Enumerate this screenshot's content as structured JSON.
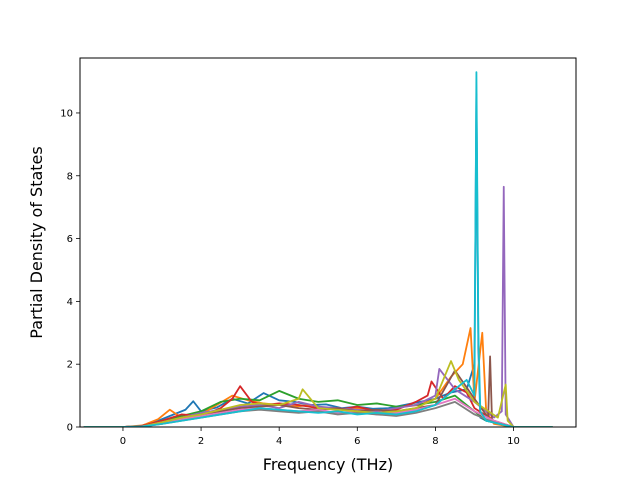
{
  "chart_data": {
    "type": "line",
    "title": "",
    "xlabel": "Frequency (THz)",
    "ylabel": "Partial Density of States",
    "xlim": [
      -1.1,
      11.6
    ],
    "ylim": [
      0,
      11.75
    ],
    "xticks": [
      0,
      2,
      4,
      6,
      8,
      10
    ],
    "yticks": [
      0,
      2,
      4,
      6,
      8,
      10
    ],
    "grid": false,
    "legend": "none",
    "colors": [
      "#1f77b4",
      "#ff7f0e",
      "#2ca02c",
      "#d62728",
      "#9467bd",
      "#8c564b",
      "#e377c2",
      "#7f7f7f",
      "#bcbd22",
      "#17becf"
    ],
    "series": [
      {
        "color": "#1f77b4",
        "x": [
          -1,
          0,
          0.4,
          0.8,
          1.2,
          1.6,
          1.8,
          2.0,
          2.4,
          2.8,
          3.2,
          3.6,
          4.0,
          4.4,
          4.8,
          5.2,
          5.6,
          6.0,
          6.4,
          6.8,
          7.2,
          7.6,
          8.0,
          8.4,
          8.8,
          9.0,
          9.05,
          9.1,
          9.15,
          9.3,
          9.7,
          10,
          11
        ],
        "y": [
          0,
          0,
          0.02,
          0.15,
          0.35,
          0.55,
          0.82,
          0.5,
          0.62,
          0.9,
          0.75,
          1.08,
          0.85,
          0.8,
          0.7,
          0.72,
          0.6,
          0.65,
          0.58,
          0.6,
          0.7,
          0.8,
          0.9,
          1.1,
          1.2,
          2.0,
          10.6,
          2.5,
          0.3,
          0.2,
          0.1,
          0,
          0
        ]
      },
      {
        "color": "#ff7f0e",
        "x": [
          -1,
          0,
          0.5,
          0.9,
          1.2,
          1.5,
          2.0,
          2.4,
          2.8,
          3.2,
          3.6,
          4.0,
          4.4,
          4.8,
          5.2,
          5.6,
          6.0,
          6.4,
          6.8,
          7.2,
          7.6,
          8.0,
          8.4,
          8.7,
          8.9,
          9.0,
          9.2,
          9.3,
          9.5,
          10,
          11
        ],
        "y": [
          0,
          0,
          0.05,
          0.25,
          0.55,
          0.3,
          0.4,
          0.7,
          1.0,
          0.85,
          0.75,
          0.7,
          0.65,
          0.7,
          0.6,
          0.55,
          0.6,
          0.5,
          0.55,
          0.65,
          0.7,
          0.9,
          1.6,
          2.0,
          3.15,
          0.8,
          3.0,
          0.5,
          0.1,
          0,
          0
        ]
      },
      {
        "color": "#2ca02c",
        "x": [
          -1,
          0,
          0.5,
          1.0,
          1.5,
          2.0,
          2.5,
          3.0,
          3.5,
          4.0,
          4.5,
          5.0,
          5.5,
          6.0,
          6.5,
          7.0,
          7.5,
          8.0,
          8.5,
          9.0,
          9.3,
          10,
          11
        ],
        "y": [
          0,
          0,
          0.03,
          0.2,
          0.35,
          0.5,
          0.8,
          0.9,
          0.85,
          1.15,
          0.9,
          0.8,
          0.85,
          0.7,
          0.75,
          0.65,
          0.7,
          0.8,
          1.0,
          0.5,
          0.2,
          0,
          0
        ]
      },
      {
        "color": "#d62728",
        "x": [
          -1,
          0,
          0.5,
          1.0,
          1.5,
          2.0,
          2.5,
          2.8,
          3.0,
          3.3,
          3.6,
          4.0,
          4.5,
          5.0,
          5.5,
          6.0,
          6.5,
          7.0,
          7.5,
          7.8,
          7.9,
          8.2,
          8.5,
          8.8,
          9.0,
          9.5,
          10,
          11
        ],
        "y": [
          0,
          0,
          0.04,
          0.2,
          0.4,
          0.35,
          0.6,
          0.9,
          1.3,
          0.8,
          0.7,
          0.75,
          0.7,
          0.6,
          0.55,
          0.65,
          0.5,
          0.55,
          0.8,
          1.0,
          1.45,
          0.9,
          1.3,
          1.1,
          0.6,
          0.2,
          0,
          0
        ]
      },
      {
        "color": "#9467bd",
        "x": [
          -1,
          0,
          0.5,
          1.0,
          1.5,
          2.0,
          2.5,
          3.0,
          3.5,
          4.0,
          4.5,
          5.0,
          5.5,
          6.0,
          6.5,
          7.0,
          7.5,
          8.0,
          8.1,
          8.5,
          9.0,
          9.5,
          9.7,
          9.75,
          9.8,
          10,
          11
        ],
        "y": [
          0,
          0,
          0.02,
          0.15,
          0.3,
          0.45,
          0.55,
          0.65,
          0.7,
          0.6,
          0.8,
          0.65,
          0.6,
          0.55,
          0.5,
          0.6,
          0.7,
          1.0,
          1.85,
          1.2,
          0.8,
          0.3,
          0.5,
          7.65,
          0.4,
          0,
          0
        ]
      },
      {
        "color": "#8c564b",
        "x": [
          -1,
          0,
          0.5,
          1.0,
          1.5,
          2.0,
          2.5,
          3.0,
          3.5,
          4.0,
          4.5,
          5.0,
          5.5,
          6.0,
          6.5,
          7.0,
          7.5,
          8.0,
          8.5,
          9.0,
          9.35,
          9.4,
          9.45,
          10,
          11
        ],
        "y": [
          0,
          0,
          0.02,
          0.12,
          0.3,
          0.4,
          0.5,
          0.6,
          0.65,
          0.7,
          0.6,
          0.55,
          0.6,
          0.5,
          0.55,
          0.5,
          0.6,
          0.7,
          1.8,
          0.9,
          0.3,
          2.25,
          0.2,
          0,
          0
        ]
      },
      {
        "color": "#e377c2",
        "x": [
          -1,
          0,
          0.5,
          1.0,
          1.5,
          2.0,
          2.5,
          3.0,
          3.5,
          4.0,
          4.5,
          5.0,
          5.5,
          6.0,
          6.5,
          7.0,
          7.5,
          8.0,
          8.5,
          9.0,
          9.5,
          10,
          11
        ],
        "y": [
          0,
          0,
          0.02,
          0.1,
          0.25,
          0.35,
          0.45,
          0.55,
          0.6,
          0.55,
          0.5,
          0.55,
          0.45,
          0.5,
          0.4,
          0.45,
          0.55,
          0.7,
          0.9,
          0.5,
          0.2,
          0,
          0
        ]
      },
      {
        "color": "#7f7f7f",
        "x": [
          -1,
          0,
          0.5,
          1.0,
          1.5,
          2.0,
          2.5,
          3.0,
          3.5,
          4.0,
          4.5,
          5.0,
          5.5,
          6.0,
          6.5,
          7.0,
          7.5,
          8.0,
          8.5,
          9.0,
          9.5,
          10,
          11
        ],
        "y": [
          0,
          0,
          0.01,
          0.1,
          0.2,
          0.3,
          0.4,
          0.5,
          0.55,
          0.5,
          0.45,
          0.5,
          0.4,
          0.45,
          0.4,
          0.35,
          0.45,
          0.6,
          0.8,
          0.4,
          0.15,
          0,
          0
        ]
      },
      {
        "color": "#bcbd22",
        "x": [
          -1,
          0,
          0.5,
          1.0,
          1.5,
          2.0,
          2.5,
          3.0,
          3.5,
          4.0,
          4.5,
          4.6,
          5.0,
          5.5,
          6.0,
          6.5,
          7.0,
          7.5,
          8.0,
          8.4,
          8.6,
          9.0,
          9.6,
          9.8,
          9.85,
          10,
          11
        ],
        "y": [
          0,
          0,
          0.02,
          0.15,
          0.3,
          0.4,
          0.55,
          0.7,
          0.75,
          0.7,
          0.9,
          1.2,
          0.6,
          0.55,
          0.5,
          0.45,
          0.5,
          0.6,
          0.9,
          2.1,
          1.5,
          0.8,
          0.3,
          1.35,
          0.2,
          0,
          0
        ]
      },
      {
        "color": "#17becf",
        "x": [
          -1,
          0,
          0.5,
          1.0,
          1.5,
          2.0,
          2.5,
          3.0,
          3.5,
          4.0,
          4.5,
          5.0,
          5.5,
          6.0,
          6.5,
          7.0,
          7.5,
          8.0,
          8.5,
          8.8,
          9.0,
          9.05,
          9.1,
          9.15,
          9.3,
          9.8,
          10,
          11
        ],
        "y": [
          0,
          0,
          0.02,
          0.1,
          0.2,
          0.3,
          0.4,
          0.5,
          0.6,
          0.55,
          0.5,
          0.45,
          0.5,
          0.4,
          0.45,
          0.4,
          0.5,
          0.7,
          1.2,
          1.5,
          1.0,
          11.3,
          3.0,
          0.5,
          0.2,
          0.05,
          0,
          0
        ]
      }
    ]
  }
}
